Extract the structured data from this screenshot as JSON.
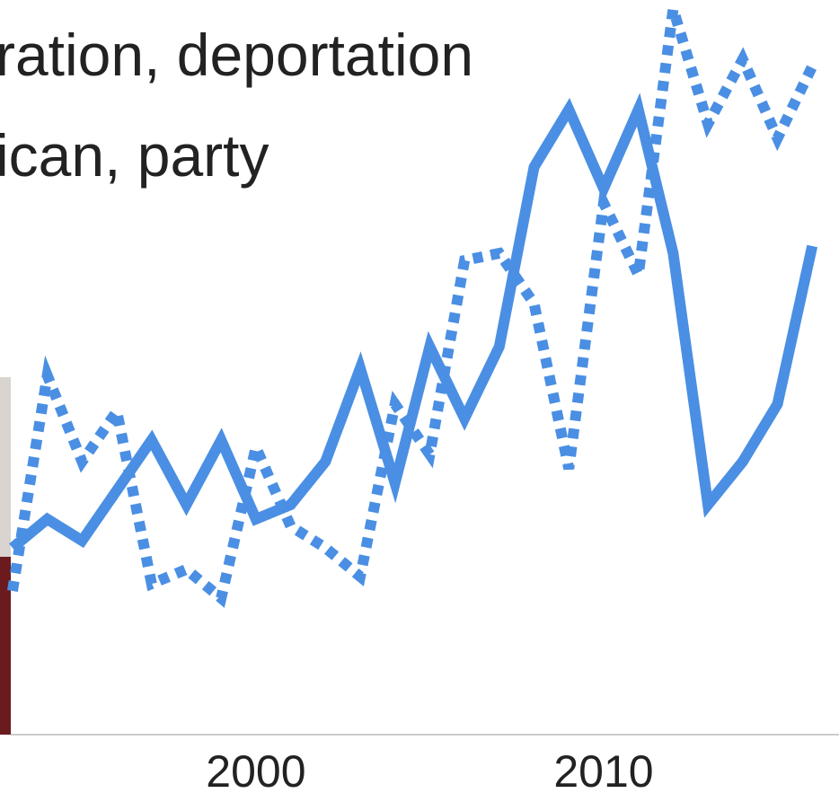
{
  "chart_data": {
    "type": "line",
    "title_lines": [
      "ration, deportation",
      "ican, party"
    ],
    "x": [
      1993,
      1994,
      1995,
      1996,
      1997,
      1998,
      1999,
      2000,
      2001,
      2002,
      2003,
      2004,
      2005,
      2006,
      2007,
      2008,
      2009,
      2010,
      2011,
      2012,
      2013,
      2014,
      2015,
      2016
    ],
    "series": [
      {
        "color": "#4a8fe3",
        "style": "solid",
        "values": [
          26,
          30,
          27,
          34,
          41,
          32,
          41,
          30,
          32,
          38,
          51,
          35,
          54,
          44,
          54,
          79,
          87,
          76,
          87,
          67,
          32,
          38,
          46,
          68
        ]
      },
      {
        "color": "#4a8fe3",
        "style": "dotted",
        "values": [
          20,
          50,
          38,
          45,
          21,
          23,
          19,
          40,
          29,
          26,
          22,
          46,
          39,
          66,
          67,
          60,
          37,
          74,
          64,
          101,
          85,
          94,
          83,
          93
        ]
      }
    ],
    "xlim": [
      1992.64,
      2016.77
    ],
    "ylim": [
      0,
      102
    ],
    "xticks": [
      2000,
      2010
    ]
  }
}
